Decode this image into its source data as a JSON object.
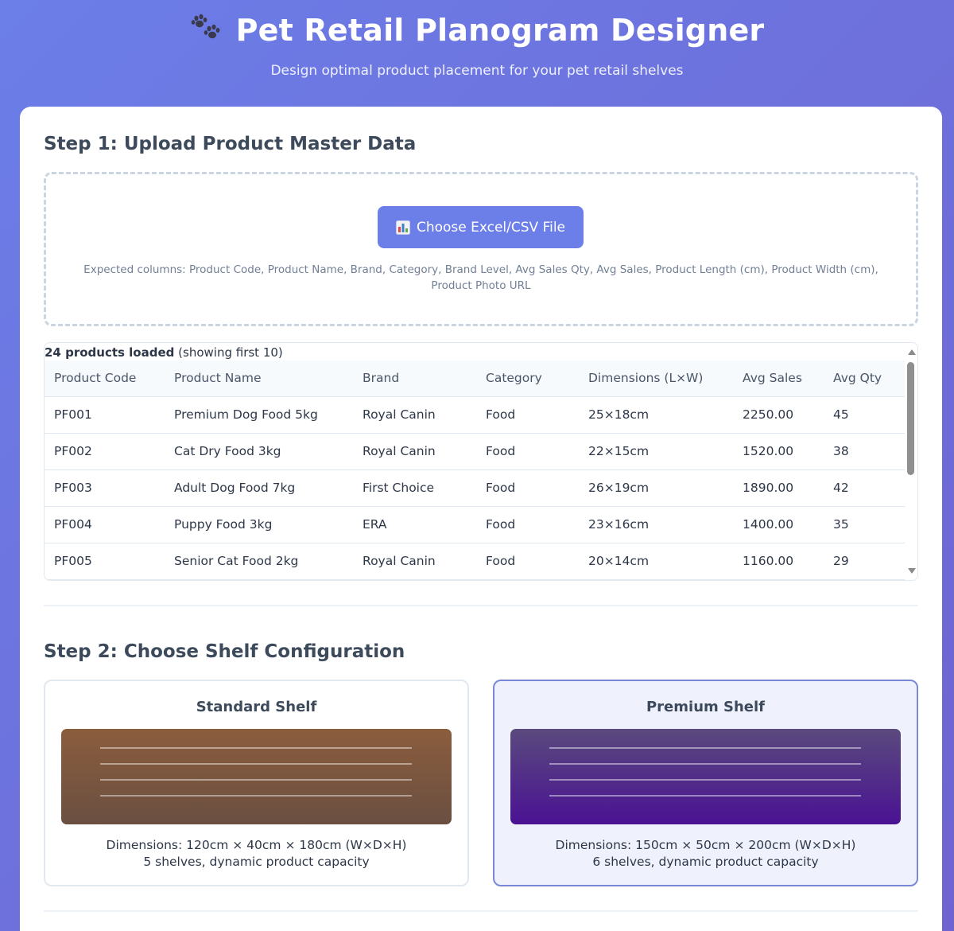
{
  "header": {
    "title": "Pet Retail Planogram Designer",
    "subtitle": "Design optimal product placement for your pet retail shelves"
  },
  "step1": {
    "title": "Step 1: Upload Product Master Data",
    "upload_label": "Choose Excel/CSV File",
    "hint": "Expected columns: Product Code, Product Name, Brand, Category, Brand Level, Avg Sales Qty, Avg Sales, Product Length (cm), Product Width (cm), Product Photo URL",
    "loaded_count": "24 products loaded",
    "loaded_note": "(showing first 10)"
  },
  "table": {
    "headers": [
      "Product Code",
      "Product Name",
      "Brand",
      "Category",
      "Dimensions (L×W)",
      "Avg Sales",
      "Avg Qty"
    ],
    "rows": [
      [
        "PF001",
        "Premium Dog Food 5kg",
        "Royal Canin",
        "Food",
        "25×18cm",
        "2250.00",
        "45"
      ],
      [
        "PF002",
        "Cat Dry Food 3kg",
        "Royal Canin",
        "Food",
        "22×15cm",
        "1520.00",
        "38"
      ],
      [
        "PF003",
        "Adult Dog Food 7kg",
        "First Choice",
        "Food",
        "26×19cm",
        "1890.00",
        "42"
      ],
      [
        "PF004",
        "Puppy Food 3kg",
        "ERA",
        "Food",
        "23×16cm",
        "1400.00",
        "35"
      ],
      [
        "PF005",
        "Senior Cat Food 2kg",
        "Royal Canin",
        "Food",
        "20×14cm",
        "1160.00",
        "29"
      ]
    ]
  },
  "step2": {
    "title": "Step 2: Choose Shelf Configuration",
    "shelves": [
      {
        "name": "Standard Shelf",
        "dimensions": "Dimensions: 120cm × 40cm × 180cm (W×D×H)",
        "capacity": "5 shelves, dynamic product capacity",
        "selected": false,
        "color": "#8b5d3d"
      },
      {
        "name": "Premium Shelf",
        "dimensions": "Dimensions: 150cm × 50cm × 200cm (W×D×H)",
        "capacity": "6 shelves, dynamic product capacity",
        "selected": true,
        "color": "#4a1293"
      }
    ]
  },
  "icons": {
    "title_icon": "paw-prints-icon",
    "upload_icon": "bar-chart-icon"
  }
}
